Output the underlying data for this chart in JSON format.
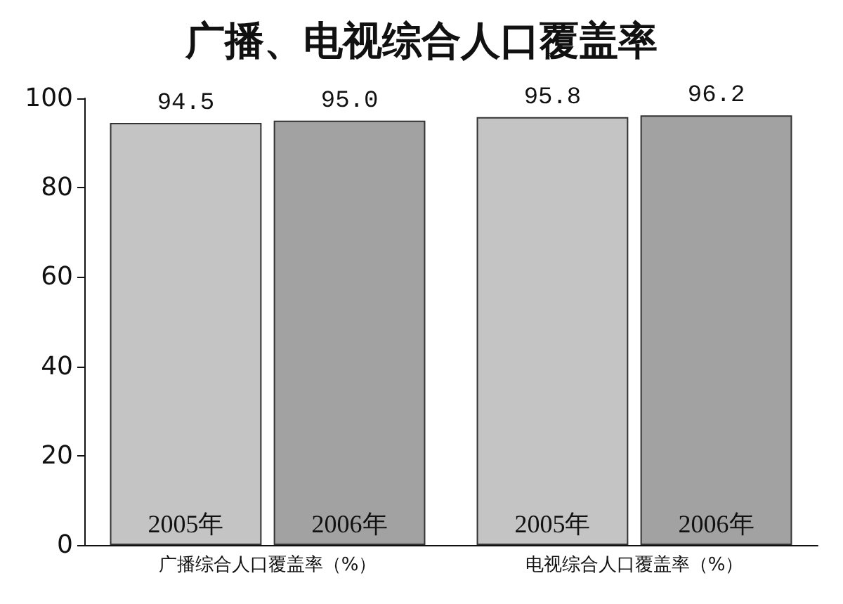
{
  "chart_data": {
    "type": "bar",
    "title": "广播、电视综合人口覆盖率",
    "categories": [
      "广播综合人口覆盖率（%）",
      "电视综合人口覆盖率（%）"
    ],
    "series": [
      {
        "name": "2005年",
        "color": "#c4c4c4",
        "values": [
          94.5,
          95.8
        ],
        "value_labels": [
          "94.5",
          "95.8"
        ]
      },
      {
        "name": "2006年",
        "color": "#a2a2a2",
        "values": [
          95.0,
          96.2
        ],
        "value_labels": [
          "95.0",
          "96.2"
        ]
      }
    ],
    "ylim": [
      0,
      100
    ],
    "yticks": [
      0,
      20,
      40,
      60,
      80,
      100
    ],
    "grid": false,
    "legend": false
  }
}
